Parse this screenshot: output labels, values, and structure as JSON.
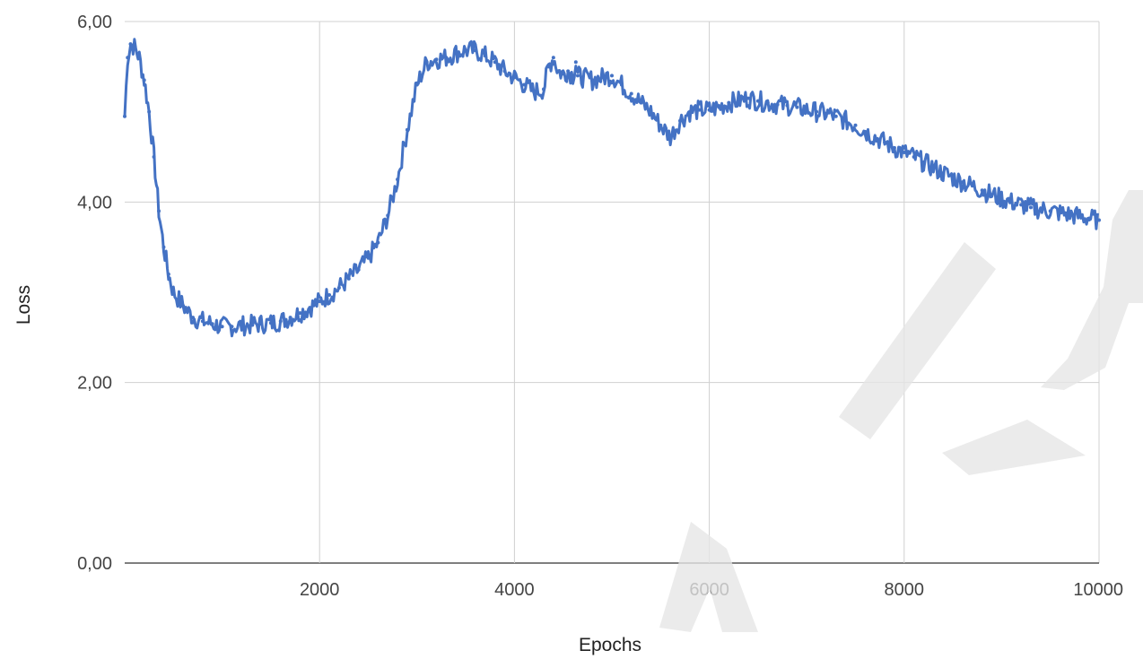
{
  "chart_data": {
    "type": "line",
    "title": "",
    "xlabel": "Epochs",
    "ylabel": "Loss",
    "xlim": [
      0,
      10000
    ],
    "ylim": [
      0,
      6
    ],
    "x_ticks": [
      2000,
      4000,
      6000,
      8000,
      10000
    ],
    "x_tick_labels": [
      "2000",
      "4000",
      "6000",
      "8000",
      "10000"
    ],
    "y_ticks": [
      0,
      2,
      4,
      6
    ],
    "y_tick_labels": [
      "0,00",
      "2,00",
      "4,00",
      "6,00"
    ],
    "grid": true,
    "legend": "none",
    "series_color": "#4472c4",
    "series": [
      {
        "x": [
          0,
          30,
          60,
          100,
          150,
          200,
          250,
          300,
          350,
          400,
          450,
          500,
          600,
          700,
          800,
          900,
          1000,
          1100,
          1200,
          1300,
          1400,
          1500,
          1600,
          1700,
          1800,
          1900,
          2000,
          2100,
          2200,
          2300,
          2400,
          2500,
          2600,
          2700,
          2800,
          2900,
          3000,
          3100,
          3200,
          3300,
          3400,
          3500,
          3600,
          3700,
          3800,
          3900,
          4000,
          4100,
          4200,
          4300,
          4350,
          4400,
          4450,
          4500,
          4550,
          4600,
          4630,
          4650,
          4700,
          4800,
          4900,
          5000,
          5100,
          5200,
          5300,
          5400,
          5500,
          5600,
          5700,
          5800,
          5900,
          6000,
          6100,
          6200,
          6300,
          6400,
          6500,
          6600,
          6700,
          6800,
          6900,
          7000,
          7100,
          7200,
          7300,
          7400,
          7500,
          7600,
          7700,
          7800,
          7900,
          8000,
          8100,
          8200,
          8300,
          8400,
          8500,
          8600,
          8700,
          8800,
          8900,
          9000,
          9100,
          9200,
          9300,
          9400,
          9500,
          9600,
          9700,
          9800,
          9900,
          10000
        ],
        "y": [
          4.95,
          5.6,
          5.75,
          5.72,
          5.6,
          5.35,
          5.0,
          4.5,
          3.9,
          3.5,
          3.2,
          3.0,
          2.85,
          2.72,
          2.68,
          2.65,
          2.62,
          2.62,
          2.63,
          2.64,
          2.65,
          2.66,
          2.68,
          2.72,
          2.77,
          2.83,
          2.9,
          2.97,
          3.05,
          3.15,
          3.25,
          3.38,
          3.55,
          3.85,
          4.25,
          4.8,
          5.3,
          5.55,
          5.58,
          5.6,
          5.65,
          5.68,
          5.68,
          5.62,
          5.55,
          5.45,
          5.38,
          5.3,
          5.22,
          5.25,
          5.5,
          5.6,
          5.45,
          5.42,
          5.45,
          5.4,
          5.55,
          5.4,
          5.38,
          5.35,
          5.38,
          5.4,
          5.3,
          5.2,
          5.1,
          5.0,
          4.85,
          4.72,
          4.9,
          5.0,
          5.02,
          5.02,
          5.05,
          5.1,
          5.12,
          5.15,
          5.12,
          5.1,
          5.08,
          5.07,
          5.05,
          5.02,
          5.0,
          4.98,
          4.95,
          4.9,
          4.85,
          4.78,
          4.72,
          4.66,
          4.6,
          4.55,
          4.5,
          4.44,
          4.38,
          4.32,
          4.27,
          4.22,
          4.18,
          4.13,
          4.08,
          4.04,
          4.0,
          3.97,
          3.94,
          3.92,
          3.9,
          3.88,
          3.86,
          3.84,
          3.82,
          3.8
        ]
      }
    ]
  }
}
